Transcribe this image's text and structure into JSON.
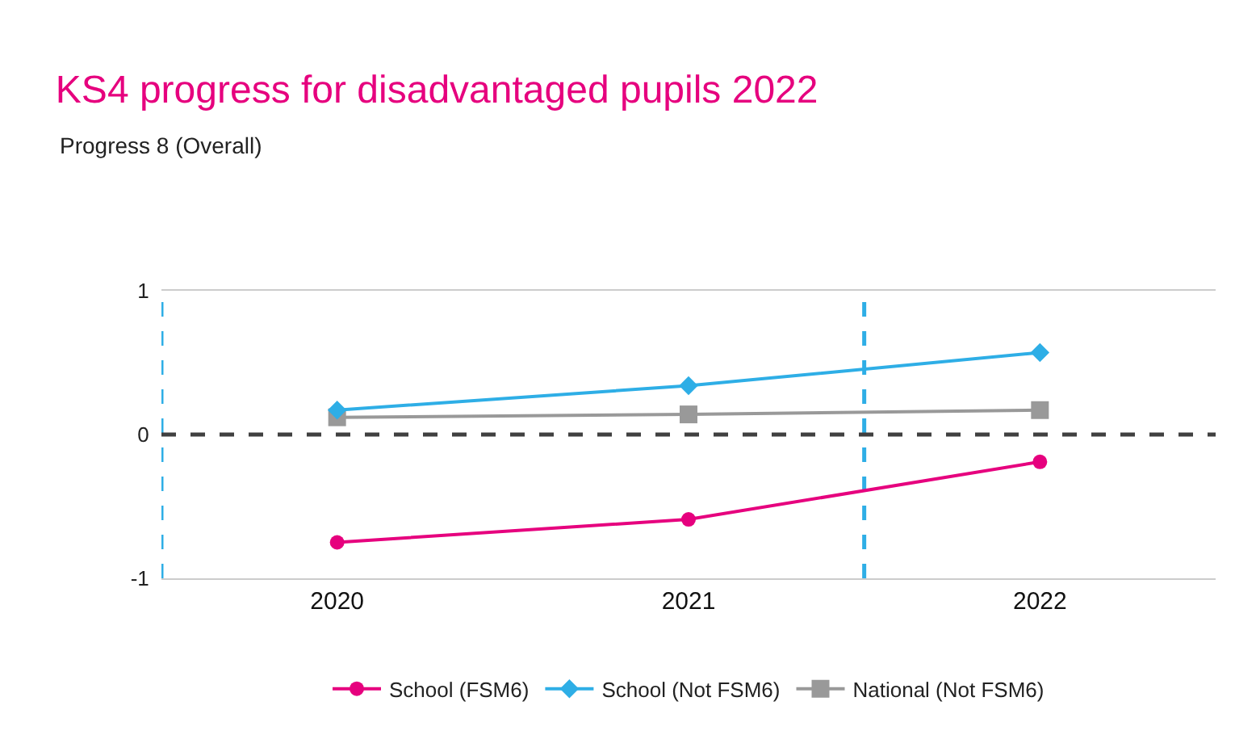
{
  "chart_data": {
    "type": "line",
    "title": "KS4 progress for disadvantaged pupils 2022",
    "annotations": [
      "Progress 8 (Overall)"
    ],
    "x": [
      2020,
      2021,
      2022
    ],
    "xlim": [
      2019.5,
      2022.5
    ],
    "xticks": [
      2020,
      2021,
      2022
    ],
    "ylim": [
      -1,
      1
    ],
    "yticks": [
      -1,
      0,
      1
    ],
    "grid": false,
    "legend": "bottom",
    "series": [
      {
        "name": "School (FSM6)",
        "color": "#e6007e",
        "marker": "circle",
        "values": [
          -0.75,
          -0.59,
          -0.19
        ]
      },
      {
        "name": "School (Not FSM6)",
        "color": "#2eaee6",
        "marker": "diamond",
        "values": [
          0.17,
          0.34,
          0.57
        ]
      },
      {
        "name": "National (Not FSM6)",
        "color": "#999999",
        "marker": "square",
        "values": [
          0.12,
          0.14,
          0.17
        ]
      }
    ],
    "ref_lines": [
      {
        "axis": "y",
        "value": 0,
        "color": "#404040",
        "line_style": "dashed"
      },
      {
        "axis": "x",
        "value": 2019.5,
        "color": "#2eaee6",
        "line_style": "dashed"
      },
      {
        "axis": "x",
        "value": 2021.5,
        "color": "#2eaee6",
        "line_style": "dashed"
      }
    ]
  }
}
